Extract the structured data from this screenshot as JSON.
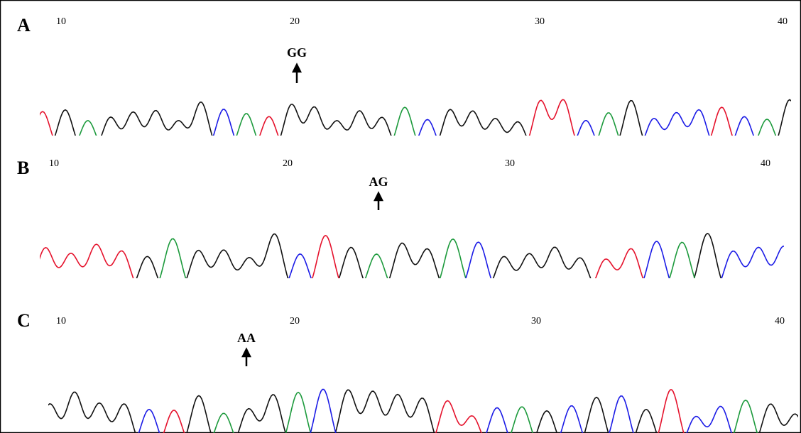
{
  "panels": [
    {
      "label": "A",
      "positions": [
        10,
        20,
        30,
        40
      ],
      "genotype": "GG"
    },
    {
      "label": "B",
      "positions": [
        10,
        20,
        30,
        40
      ],
      "genotype": "AG"
    },
    {
      "label": "C",
      "positions": [
        10,
        20,
        30,
        40
      ],
      "genotype": "AA"
    }
  ]
}
